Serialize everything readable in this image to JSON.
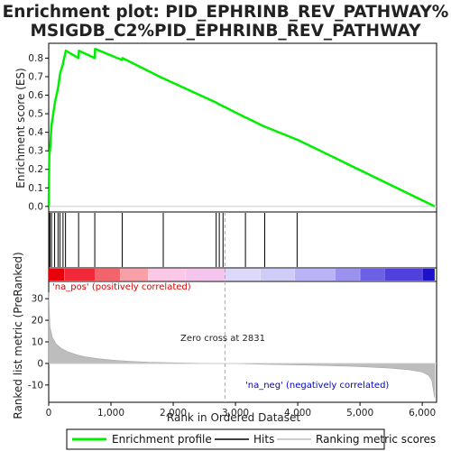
{
  "chart_data": {
    "type": "line",
    "title_line1": "Enrichment plot: PID_EPHRINB_REV_PATHWAY%",
    "title_line2": "MSIGDB_C2%PID_EPHRINB_REV_PATHWAY",
    "xlabel": "Rank in Ordered Dataset",
    "ylabel_top": "Enrichment score (ES)",
    "ylabel_bottom": "Ranked list metric (PreRanked)",
    "xlim": [
      0,
      6230
    ],
    "x_ticks": [
      0,
      1000,
      2000,
      3000,
      4000,
      5000,
      6000
    ],
    "x_tick_labels": [
      "0",
      "1,000",
      "2,000",
      "3,000",
      "4,000",
      "5,000",
      "6,000"
    ],
    "es_ylim": [
      -0.03,
      0.88
    ],
    "es_ticks": [
      0.0,
      0.1,
      0.2,
      0.3,
      0.4,
      0.5,
      0.6,
      0.7,
      0.8
    ],
    "es_tick_labels": [
      "0.0",
      "0.1",
      "0.2",
      "0.3",
      "0.4",
      "0.5",
      "0.6",
      "0.7",
      "0.8"
    ],
    "metric_ylim": [
      -18,
      38
    ],
    "metric_ticks": [
      30,
      20,
      10,
      0,
      -10
    ],
    "metric_tick_labels": [
      "30",
      "20",
      "10",
      "0",
      "-10"
    ],
    "enrichment_profile": {
      "x": [
        0,
        10,
        20,
        45,
        50,
        95,
        100,
        150,
        155,
        180,
        185,
        230,
        235,
        270,
        275,
        480,
        485,
        740,
        745,
        1180,
        1185,
        1840,
        1845,
        2690,
        2695,
        2740,
        2745,
        2800,
        2805,
        3160,
        3165,
        3470,
        3475,
        3990,
        3995,
        6200
      ],
      "y": [
        0.0,
        0.29,
        0.3,
        0.44,
        0.45,
        0.55,
        0.56,
        0.64,
        0.65,
        0.71,
        0.72,
        0.77,
        0.78,
        0.83,
        0.84,
        0.8,
        0.84,
        0.8,
        0.85,
        0.79,
        0.8,
        0.69,
        0.69,
        0.56,
        0.56,
        0.55,
        0.55,
        0.54,
        0.54,
        0.48,
        0.48,
        0.43,
        0.43,
        0.36,
        0.36,
        0.0
      ]
    },
    "hits": [
      5,
      20,
      45,
      95,
      150,
      180,
      230,
      270,
      480,
      740,
      1180,
      1840,
      2690,
      2740,
      2800,
      3160,
      3470,
      3990
    ],
    "metric_profile": {
      "x": [
        0,
        20,
        60,
        120,
        200,
        300,
        450,
        600,
        800,
        1000,
        1300,
        1600,
        2000,
        2400,
        2831,
        3500,
        4000,
        4500,
        5000,
        5500,
        5800,
        6000,
        6100,
        6150,
        6200
      ],
      "y": [
        33,
        17,
        12,
        9,
        7,
        5.5,
        4,
        3,
        2.2,
        1.6,
        1.0,
        0.6,
        0.3,
        0.1,
        0,
        -0.4,
        -0.7,
        -1.0,
        -1.5,
        -2.2,
        -3.0,
        -4.0,
        -5.5,
        -7.5,
        -16
      ]
    },
    "zero_cross": 2831,
    "zero_cross_label": "Zero cross at 2831",
    "pos_label": "'na_pos' (positively correlated)",
    "neg_label": "'na_neg' (negatively correlated)",
    "legend": [
      "Enrichment profile",
      "Hits",
      "Ranking metric scores"
    ],
    "colors": {
      "profile": "#00ee00",
      "hits": "#000000",
      "metric_fill": "#bdbdbd",
      "pos_text": "#dd0000",
      "neg_text": "#0000cc",
      "zero_line": "#aaaaaa"
    },
    "gradient_bar": {
      "x": [
        0,
        250,
        750,
        1150,
        1600,
        2200,
        2831,
        3400,
        3950,
        4600,
        5000,
        5400,
        6000,
        6200
      ],
      "colors": [
        "#e8000a",
        "#f02838",
        "#f2636c",
        "#f8a0a8",
        "#fcc8e6",
        "#f4c6ee",
        "#dcd8f8",
        "#d0ccf8",
        "#bab4f6",
        "#9a92ee",
        "#6c60e4",
        "#5040de",
        "#1e12c8"
      ]
    }
  }
}
